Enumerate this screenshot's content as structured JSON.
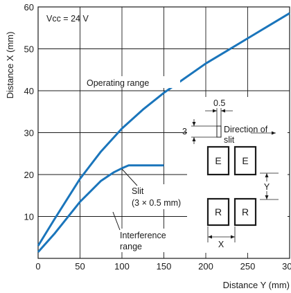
{
  "chart_data": {
    "type": "line",
    "xlabel": "Distance Y (mm)",
    "ylabel": "Distance X (mm)",
    "xlim": [
      0,
      300
    ],
    "ylim": [
      0,
      60
    ],
    "x_ticks": [
      "0",
      "50",
      "100",
      "150",
      "200",
      "250",
      "300"
    ],
    "y_ticks": [
      "10",
      "20",
      "30",
      "40",
      "50",
      "60"
    ],
    "grid": true,
    "condition_label": "Vcc = 24 V",
    "series": [
      {
        "name": "Operating range",
        "x": [
          0,
          20,
          50,
          75,
          100,
          125,
          150,
          175,
          200,
          225,
          250,
          275,
          300
        ],
        "y": [
          3,
          9.5,
          19,
          25.5,
          31,
          35.5,
          39.5,
          43,
          46.5,
          49.5,
          52.5,
          55.5,
          58.5
        ],
        "color": "#1a75bb"
      },
      {
        "name": "Interference range",
        "x": [
          0,
          20,
          50,
          75,
          90,
          100,
          108,
          120,
          135,
          150
        ],
        "y": [
          1.5,
          6,
          13.5,
          18.5,
          20.5,
          21.5,
          22.2,
          22.2,
          22.2,
          22.2
        ],
        "color": "#1a75bb"
      }
    ],
    "annotations": {
      "operating": "Operating range",
      "interference_line1": "Interference",
      "interference_line2": "range",
      "slit_line1": "Slit",
      "slit_line2": "(3 × 0.5 mm)"
    },
    "inset": {
      "slit_width": "0.5",
      "slit_height": "3",
      "direction_line1": "Direction of",
      "direction_line2": "slit",
      "emitter_label": "E",
      "receiver_label": "R",
      "x_dim": "X",
      "y_dim": "Y"
    }
  }
}
